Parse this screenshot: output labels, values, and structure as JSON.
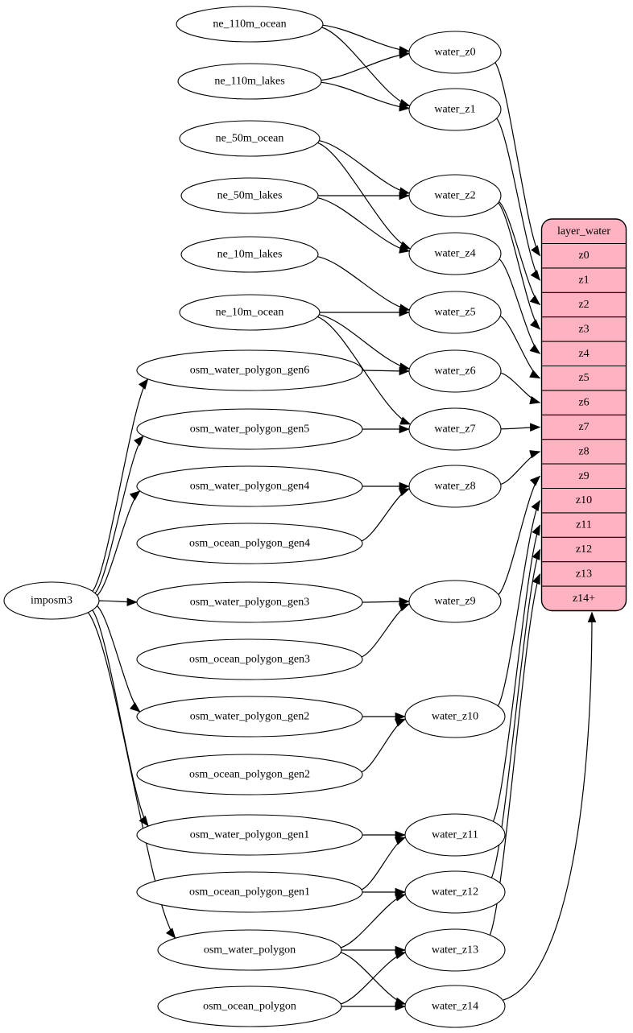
{
  "diagram": {
    "colors": {
      "background": "#ffffff",
      "node_fill": "#ffffff",
      "stroke": "#000000",
      "table_fill": "#ffb3c2",
      "text": "#000000"
    },
    "nodes": [
      {
        "id": "imposm3",
        "label": "imposm3"
      },
      {
        "id": "ne_110m_ocean",
        "label": "ne_110m_ocean"
      },
      {
        "id": "ne_110m_lakes",
        "label": "ne_110m_lakes"
      },
      {
        "id": "ne_50m_ocean",
        "label": "ne_50m_ocean"
      },
      {
        "id": "ne_50m_lakes",
        "label": "ne_50m_lakes"
      },
      {
        "id": "ne_10m_lakes",
        "label": "ne_10m_lakes"
      },
      {
        "id": "ne_10m_ocean",
        "label": "ne_10m_ocean"
      },
      {
        "id": "osm_water_polygon_gen6",
        "label": "osm_water_polygon_gen6"
      },
      {
        "id": "osm_water_polygon_gen5",
        "label": "osm_water_polygon_gen5"
      },
      {
        "id": "osm_water_polygon_gen4",
        "label": "osm_water_polygon_gen4"
      },
      {
        "id": "osm_ocean_polygon_gen4",
        "label": "osm_ocean_polygon_gen4"
      },
      {
        "id": "osm_water_polygon_gen3",
        "label": "osm_water_polygon_gen3"
      },
      {
        "id": "osm_ocean_polygon_gen3",
        "label": "osm_ocean_polygon_gen3"
      },
      {
        "id": "osm_water_polygon_gen2",
        "label": "osm_water_polygon_gen2"
      },
      {
        "id": "osm_ocean_polygon_gen2",
        "label": "osm_ocean_polygon_gen2"
      },
      {
        "id": "osm_water_polygon_gen1",
        "label": "osm_water_polygon_gen1"
      },
      {
        "id": "osm_ocean_polygon_gen1",
        "label": "osm_ocean_polygon_gen1"
      },
      {
        "id": "osm_water_polygon",
        "label": "osm_water_polygon"
      },
      {
        "id": "osm_ocean_polygon",
        "label": "osm_ocean_polygon"
      },
      {
        "id": "water_z0",
        "label": "water_z0"
      },
      {
        "id": "water_z1",
        "label": "water_z1"
      },
      {
        "id": "water_z2",
        "label": "water_z2"
      },
      {
        "id": "water_z4",
        "label": "water_z4"
      },
      {
        "id": "water_z5",
        "label": "water_z5"
      },
      {
        "id": "water_z6",
        "label": "water_z6"
      },
      {
        "id": "water_z7",
        "label": "water_z7"
      },
      {
        "id": "water_z8",
        "label": "water_z8"
      },
      {
        "id": "water_z9",
        "label": "water_z9"
      },
      {
        "id": "water_z10",
        "label": "water_z10"
      },
      {
        "id": "water_z11",
        "label": "water_z11"
      },
      {
        "id": "water_z12",
        "label": "water_z12"
      },
      {
        "id": "water_z13",
        "label": "water_z13"
      },
      {
        "id": "water_z14",
        "label": "water_z14"
      }
    ],
    "table": {
      "id": "layer_water",
      "title": "layer_water",
      "rows": [
        "z0",
        "z1",
        "z2",
        "z3",
        "z4",
        "z5",
        "z6",
        "z7",
        "z8",
        "z9",
        "z10",
        "z11",
        "z12",
        "z13",
        "z14+"
      ]
    },
    "edges": [
      {
        "from": "imposm3",
        "to": "osm_water_polygon_gen6"
      },
      {
        "from": "imposm3",
        "to": "osm_water_polygon_gen5"
      },
      {
        "from": "imposm3",
        "to": "osm_water_polygon_gen4"
      },
      {
        "from": "imposm3",
        "to": "osm_water_polygon_gen3"
      },
      {
        "from": "imposm3",
        "to": "osm_water_polygon_gen2"
      },
      {
        "from": "imposm3",
        "to": "osm_water_polygon_gen1"
      },
      {
        "from": "imposm3",
        "to": "osm_water_polygon"
      },
      {
        "from": "ne_110m_ocean",
        "to": "water_z0"
      },
      {
        "from": "ne_110m_ocean",
        "to": "water_z1"
      },
      {
        "from": "ne_110m_lakes",
        "to": "water_z0"
      },
      {
        "from": "ne_110m_lakes",
        "to": "water_z1"
      },
      {
        "from": "ne_50m_ocean",
        "to": "water_z2"
      },
      {
        "from": "ne_50m_ocean",
        "to": "water_z4"
      },
      {
        "from": "ne_50m_lakes",
        "to": "water_z2"
      },
      {
        "from": "ne_50m_lakes",
        "to": "water_z4"
      },
      {
        "from": "ne_10m_lakes",
        "to": "water_z5"
      },
      {
        "from": "ne_10m_ocean",
        "to": "water_z5"
      },
      {
        "from": "ne_10m_ocean",
        "to": "water_z6"
      },
      {
        "from": "ne_10m_ocean",
        "to": "water_z7"
      },
      {
        "from": "osm_water_polygon_gen6",
        "to": "water_z6"
      },
      {
        "from": "osm_water_polygon_gen5",
        "to": "water_z7"
      },
      {
        "from": "osm_water_polygon_gen4",
        "to": "water_z8"
      },
      {
        "from": "osm_ocean_polygon_gen4",
        "to": "water_z8"
      },
      {
        "from": "osm_water_polygon_gen3",
        "to": "water_z9"
      },
      {
        "from": "osm_ocean_polygon_gen3",
        "to": "water_z9"
      },
      {
        "from": "osm_water_polygon_gen2",
        "to": "water_z10"
      },
      {
        "from": "osm_ocean_polygon_gen2",
        "to": "water_z10"
      },
      {
        "from": "osm_water_polygon_gen1",
        "to": "water_z11"
      },
      {
        "from": "osm_ocean_polygon_gen1",
        "to": "water_z11"
      },
      {
        "from": "osm_ocean_polygon_gen1",
        "to": "water_z12"
      },
      {
        "from": "osm_water_polygon",
        "to": "water_z12"
      },
      {
        "from": "osm_water_polygon",
        "to": "water_z13"
      },
      {
        "from": "osm_water_polygon",
        "to": "water_z14"
      },
      {
        "from": "osm_ocean_polygon",
        "to": "water_z13"
      },
      {
        "from": "osm_ocean_polygon",
        "to": "water_z14"
      },
      {
        "from": "water_z0",
        "to": "layer_water:z0"
      },
      {
        "from": "water_z1",
        "to": "layer_water:z1"
      },
      {
        "from": "water_z2",
        "to": "layer_water:z2"
      },
      {
        "from": "water_z2",
        "to": "layer_water:z3"
      },
      {
        "from": "water_z4",
        "to": "layer_water:z4"
      },
      {
        "from": "water_z5",
        "to": "layer_water:z5"
      },
      {
        "from": "water_z6",
        "to": "layer_water:z6"
      },
      {
        "from": "water_z7",
        "to": "layer_water:z7"
      },
      {
        "from": "water_z8",
        "to": "layer_water:z8"
      },
      {
        "from": "water_z9",
        "to": "layer_water:z9"
      },
      {
        "from": "water_z10",
        "to": "layer_water:z10"
      },
      {
        "from": "water_z11",
        "to": "layer_water:z11"
      },
      {
        "from": "water_z12",
        "to": "layer_water:z12"
      },
      {
        "from": "water_z13",
        "to": "layer_water:z13"
      },
      {
        "from": "water_z14",
        "to": "layer_water:z14+"
      }
    ]
  }
}
